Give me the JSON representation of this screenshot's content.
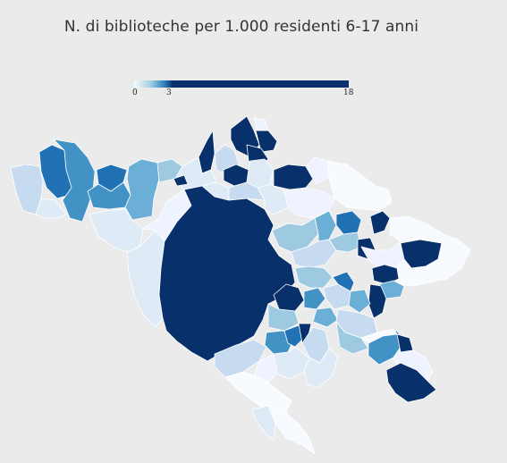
{
  "title": "N. di biblioteche per 1.000 residenti 6-17 anni",
  "legend": {
    "min_label": "0",
    "mid_label": "3",
    "max_label": "18",
    "min": 0,
    "mid": 3,
    "max": 18,
    "colors": {
      "lowest": "#f7fbff",
      "low": "#c6dbef",
      "medium": "#6baed6",
      "high": "#2171b5",
      "highest": "#08306b"
    }
  },
  "map": {
    "background_color": "#ebebeb",
    "border_color": "#ffffff"
  }
}
